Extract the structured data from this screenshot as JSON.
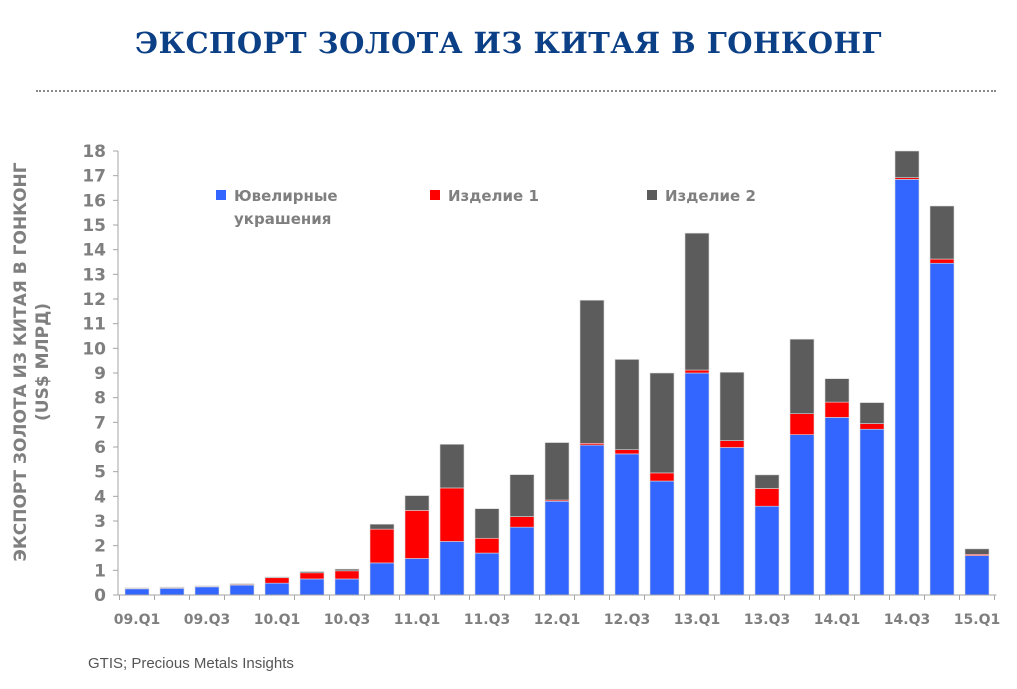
{
  "chart_data": {
    "type": "bar",
    "stacked": true,
    "title": "ЭКСПОРТ ЗОЛОТА ИЗ КИТАЯ В ГОНКОНГ",
    "ylabel": [
      "ЭКСПОРТ ЗОЛОТА ИЗ КИТАЯ В ГОНКОНГ",
      "(US$ МЛРД)"
    ],
    "xlabel": "",
    "ylim": [
      0,
      18
    ],
    "yticks": [
      0,
      1,
      2,
      3,
      4,
      5,
      6,
      7,
      8,
      9,
      10,
      11,
      12,
      13,
      14,
      15,
      16,
      17,
      18
    ],
    "grid": false,
    "legend_position": "top-left",
    "categories": [
      "09.Q1",
      "09.Q2",
      "09.Q3",
      "09.Q4",
      "10.Q1",
      "10.Q2",
      "10.Q3",
      "10.Q4",
      "11.Q1",
      "11.Q2",
      "11.Q3",
      "11.Q4",
      "12.Q1",
      "12.Q2",
      "12.Q3",
      "12.Q4",
      "13.Q1",
      "13.Q2",
      "13.Q3",
      "13.Q4",
      "14.Q1",
      "14.Q2",
      "14.Q3",
      "14.Q4",
      "15.Q1"
    ],
    "xtick_labels": [
      "09.Q1",
      "09.Q3",
      "10.Q1",
      "10.Q3",
      "11.Q1",
      "11.Q3",
      "12.Q1",
      "12.Q3",
      "13.Q1",
      "13.Q3",
      "14.Q1",
      "14.Q3",
      "15.Q1"
    ],
    "series": [
      {
        "name": "Ювелирные украшения",
        "legend_lines": [
          "Ювелирные",
          "украшения"
        ],
        "color": "#3366ff",
        "values": [
          0.25,
          0.27,
          0.33,
          0.4,
          0.48,
          0.65,
          0.65,
          1.3,
          1.48,
          2.17,
          1.7,
          2.75,
          3.8,
          6.08,
          5.72,
          4.62,
          9.0,
          5.98,
          3.6,
          6.5,
          7.2,
          6.72,
          16.85,
          13.45,
          1.6
        ]
      },
      {
        "name": "Изделие 1",
        "legend_lines": [
          "Изделие 1"
        ],
        "color": "#ff0000",
        "values": [
          0.02,
          0.03,
          0.02,
          0.03,
          0.22,
          0.25,
          0.33,
          1.37,
          1.95,
          2.17,
          0.6,
          0.43,
          0.05,
          0.07,
          0.17,
          0.33,
          0.12,
          0.28,
          0.72,
          0.85,
          0.62,
          0.23,
          0.07,
          0.17,
          0.05
        ]
      },
      {
        "name": "Изделие 2",
        "legend_lines": [
          "Изделие 2"
        ],
        "color": "#5c5c5c",
        "values": [
          0.02,
          0.02,
          0.02,
          0.03,
          0.03,
          0.05,
          0.07,
          0.2,
          0.6,
          1.77,
          1.2,
          1.7,
          2.33,
          5.8,
          3.66,
          4.05,
          5.55,
          2.77,
          0.55,
          3.02,
          0.95,
          0.85,
          1.08,
          2.15,
          0.22
        ]
      }
    ]
  },
  "source": "GTIS; Precious Metals Insights"
}
